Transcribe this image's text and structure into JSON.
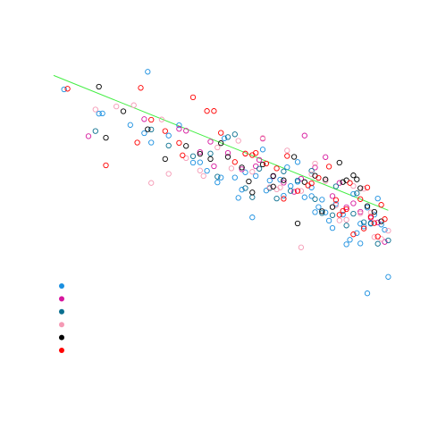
{
  "chart_data": {
    "type": "scatter",
    "title": "",
    "xlabel": "",
    "ylabel": "",
    "grid": false,
    "xlim": [
      0,
      1
    ],
    "ylim": [
      0,
      1
    ],
    "legend": {
      "placement": "bottom-left",
      "colors": [
        "#1a8fe0",
        "#d6179e",
        "#0a6f8f",
        "#f59ab5",
        "#000000",
        "#ff0000"
      ]
    },
    "trend_line": {
      "color": "#44ee44",
      "x": [
        0.0,
        0.96
      ],
      "y": [
        0.943,
        0.499
      ]
    },
    "series": [
      {
        "color": "#1a8fe0",
        "x": [
          0.03,
          0.13,
          0.14,
          0.22,
          0.26,
          0.28,
          0.36,
          0.42,
          0.44,
          0.47,
          0.49,
          0.52,
          0.53,
          0.55,
          0.58,
          0.6,
          0.61,
          0.63,
          0.65,
          0.67,
          0.68,
          0.7,
          0.72,
          0.74,
          0.75,
          0.76,
          0.78,
          0.79,
          0.8,
          0.81,
          0.83,
          0.84,
          0.85,
          0.86,
          0.87,
          0.88,
          0.89,
          0.9,
          0.91,
          0.92,
          0.93,
          0.94,
          0.95,
          0.62,
          0.7,
          0.57,
          0.48,
          0.4,
          0.33,
          0.27,
          0.88,
          0.77,
          0.66,
          0.54,
          0.96,
          0.74,
          0.9
        ],
        "y": [
          0.897,
          0.817,
          0.818,
          0.78,
          0.753,
          0.722,
          0.779,
          0.657,
          0.629,
          0.591,
          0.736,
          0.607,
          0.54,
          0.624,
          0.612,
          0.699,
          0.564,
          0.612,
          0.6,
          0.641,
          0.579,
          0.593,
          0.542,
          0.574,
          0.493,
          0.51,
          0.492,
          0.465,
          0.441,
          0.52,
          0.485,
          0.387,
          0.402,
          0.553,
          0.424,
          0.39,
          0.446,
          0.508,
          0.455,
          0.485,
          0.538,
          0.452,
          0.435,
          0.597,
          0.658,
          0.476,
          0.607,
          0.656,
          0.745,
          0.955,
          0.455,
          0.534,
          0.547,
          0.567,
          0.28,
          0.546,
          0.226
        ]
      },
      {
        "color": "#d6179e",
        "x": [
          0.1,
          0.26,
          0.36,
          0.38,
          0.42,
          0.46,
          0.5,
          0.54,
          0.58,
          0.6,
          0.63,
          0.66,
          0.69,
          0.72,
          0.75,
          0.78,
          0.8,
          0.82,
          0.84,
          0.86,
          0.88,
          0.91,
          0.93,
          0.95,
          0.59,
          0.71,
          0.45
        ],
        "y": [
          0.743,
          0.799,
          0.767,
          0.761,
          0.691,
          0.644,
          0.688,
          0.634,
          0.644,
          0.735,
          0.611,
          0.59,
          0.56,
          0.745,
          0.64,
          0.674,
          0.546,
          0.589,
          0.509,
          0.522,
          0.494,
          0.474,
          0.459,
          0.395,
          0.665,
          0.603,
          0.725
        ]
      },
      {
        "color": "#0a6f8f",
        "x": [
          0.12,
          0.28,
          0.33,
          0.4,
          0.47,
          0.5,
          0.55,
          0.59,
          0.62,
          0.66,
          0.68,
          0.7,
          0.74,
          0.77,
          0.81,
          0.84,
          0.87,
          0.89,
          0.91,
          0.93,
          0.96,
          0.52,
          0.64,
          0.75,
          0.8,
          0.45,
          0.57,
          0.86
        ],
        "y": [
          0.76,
          0.765,
          0.712,
          0.677,
          0.61,
          0.74,
          0.572,
          0.636,
          0.572,
          0.627,
          0.563,
          0.597,
          0.629,
          0.49,
          0.578,
          0.449,
          0.555,
          0.46,
          0.457,
          0.389,
          0.4,
          0.749,
          0.538,
          0.536,
          0.483,
          0.686,
          0.542,
          0.488
        ]
      },
      {
        "color": "#f59ab5",
        "x": [
          0.12,
          0.18,
          0.23,
          0.31,
          0.38,
          0.42,
          0.47,
          0.53,
          0.57,
          0.6,
          0.64,
          0.67,
          0.71,
          0.74,
          0.78,
          0.81,
          0.84,
          0.86,
          0.88,
          0.91,
          0.92,
          0.94,
          0.96,
          0.71,
          0.62,
          0.51,
          0.43,
          0.33,
          0.28,
          0.75,
          0.82,
          0.89,
          0.55,
          0.65
        ],
        "y": [
          0.831,
          0.841,
          0.845,
          0.798,
          0.671,
          0.63,
          0.706,
          0.728,
          0.626,
          0.737,
          0.568,
          0.696,
          0.563,
          0.618,
          0.595,
          0.515,
          0.468,
          0.579,
          0.489,
          0.492,
          0.411,
          0.405,
          0.432,
          0.377,
          0.575,
          0.637,
          0.612,
          0.619,
          0.589,
          0.653,
          0.466,
          0.57,
          0.685,
          0.574
        ]
      },
      {
        "color": "#000000",
        "x": [
          0.13,
          0.15,
          0.2,
          0.27,
          0.32,
          0.38,
          0.42,
          0.45,
          0.5,
          0.54,
          0.57,
          0.6,
          0.63,
          0.66,
          0.69,
          0.72,
          0.75,
          0.78,
          0.8,
          0.82,
          0.84,
          0.86,
          0.88,
          0.9,
          0.92,
          0.94,
          0.48,
          0.56,
          0.7,
          0.77,
          0.83,
          0.87,
          0.63
        ],
        "y": [
          0.906,
          0.738,
          0.825,
          0.766,
          0.668,
          0.711,
          0.685,
          0.668,
          0.675,
          0.64,
          0.558,
          0.65,
          0.612,
          0.598,
          0.675,
          0.592,
          0.613,
          0.601,
          0.51,
          0.656,
          0.598,
          0.614,
          0.572,
          0.513,
          0.494,
          0.463,
          0.72,
          0.594,
          0.456,
          0.496,
          0.592,
          0.601,
          0.577
        ]
      },
      {
        "color": "#ff0000",
        "x": [
          0.04,
          0.15,
          0.25,
          0.28,
          0.32,
          0.36,
          0.4,
          0.44,
          0.48,
          0.52,
          0.55,
          0.58,
          0.61,
          0.64,
          0.67,
          0.7,
          0.73,
          0.76,
          0.79,
          0.82,
          0.84,
          0.86,
          0.88,
          0.9,
          0.92,
          0.94,
          0.95,
          0.93,
          0.89,
          0.85,
          0.81,
          0.37,
          0.24,
          0.46,
          0.57,
          0.66,
          0.74,
          0.83,
          0.91
        ],
        "y": [
          0.899,
          0.647,
          0.902,
          0.797,
          0.76,
          0.721,
          0.871,
          0.826,
          0.754,
          0.658,
          0.686,
          0.688,
          0.653,
          0.637,
          0.678,
          0.563,
          0.581,
          0.606,
          0.643,
          0.484,
          0.503,
          0.42,
          0.536,
          0.574,
          0.457,
          0.517,
          0.47,
          0.413,
          0.439,
          0.589,
          0.533,
          0.68,
          0.722,
          0.826,
          0.681,
          0.537,
          0.588,
          0.497,
          0.478
        ]
      }
    ]
  }
}
